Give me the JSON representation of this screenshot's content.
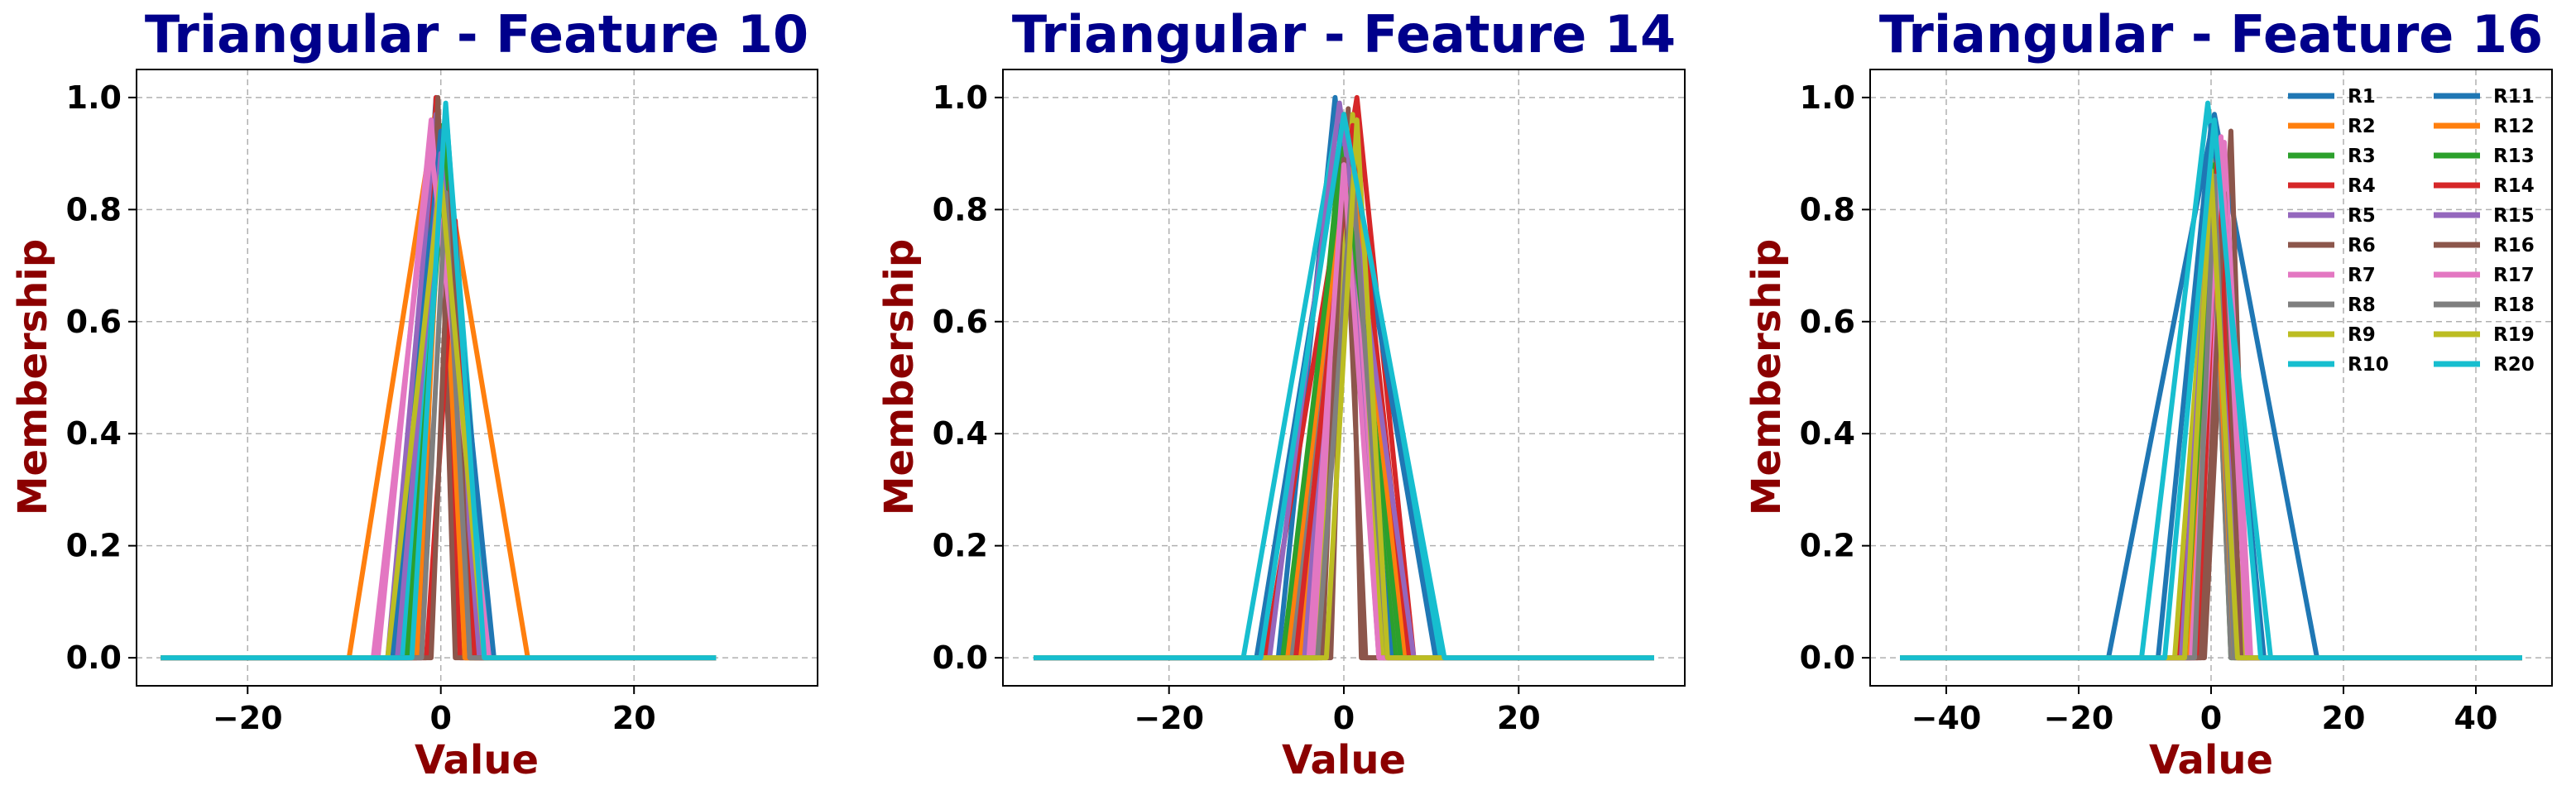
{
  "chart_data": [
    {
      "type": "line",
      "title": "Triangular - Feature 10",
      "xlabel": "Value",
      "ylabel": "Membership",
      "xlim": [
        -31.5,
        39
      ],
      "ylim": [
        -0.05,
        1.05
      ],
      "xticks": [
        -20,
        0,
        20
      ],
      "xtick_labels": [
        "−20",
        "0",
        "20"
      ],
      "yticks": [
        0.0,
        0.2,
        0.4,
        0.6,
        0.8,
        1.0
      ],
      "ytick_labels": [
        "0.0",
        "0.2",
        "0.4",
        "0.6",
        "0.8",
        "1.0"
      ],
      "grid": true,
      "legend": null,
      "x_range": [
        -29,
        28.5
      ],
      "series": [
        {
          "name": "R1",
          "color": "#1f77b4",
          "a": -4.5,
          "b": -0.5,
          "c": 3.5,
          "peak": 1.0
        },
        {
          "name": "R2",
          "color": "#ff7f0e",
          "a": -9.5,
          "b": -0.5,
          "c": 9.0,
          "peak": 0.98
        },
        {
          "name": "R3",
          "color": "#2ca02c",
          "a": -3.0,
          "b": 0.0,
          "c": 3.0,
          "peak": 0.95
        },
        {
          "name": "R4",
          "color": "#d62728",
          "a": -2.5,
          "b": -0.5,
          "c": 2.0,
          "peak": 1.0
        },
        {
          "name": "R5",
          "color": "#9467bd",
          "a": -5.5,
          "b": -0.5,
          "c": 4.5,
          "peak": 0.97
        },
        {
          "name": "R6",
          "color": "#8c564b",
          "a": -2.0,
          "b": -0.3,
          "c": 1.5,
          "peak": 1.0
        },
        {
          "name": "R7",
          "color": "#e377c2",
          "a": -6.5,
          "b": -1.0,
          "c": 3.5,
          "peak": 0.96
        },
        {
          "name": "R8",
          "color": "#7f7f7f",
          "a": -3.5,
          "b": 0.0,
          "c": 3.0,
          "peak": 0.9
        },
        {
          "name": "R9",
          "color": "#bcbd22",
          "a": -3.0,
          "b": 0.0,
          "c": 2.5,
          "peak": 0.93
        },
        {
          "name": "R10",
          "color": "#17becf",
          "a": -4.0,
          "b": 0.5,
          "c": 5.0,
          "peak": 0.98
        },
        {
          "name": "R11",
          "color": "#1f77b4",
          "a": -5.0,
          "b": 0.0,
          "c": 5.5,
          "peak": 0.94
        },
        {
          "name": "R12",
          "color": "#ff7f0e",
          "a": -2.5,
          "b": 0.0,
          "c": 2.5,
          "peak": 0.88
        },
        {
          "name": "R13",
          "color": "#2ca02c",
          "a": -3.5,
          "b": 0.5,
          "c": 4.0,
          "peak": 0.92
        },
        {
          "name": "R14",
          "color": "#d62728",
          "a": -1.5,
          "b": 1.5,
          "c": 3.5,
          "peak": 0.78
        },
        {
          "name": "R15",
          "color": "#9467bd",
          "a": -4.5,
          "b": 0.0,
          "c": 4.0,
          "peak": 0.9
        },
        {
          "name": "R16",
          "color": "#8c564b",
          "a": -1.0,
          "b": 1.0,
          "c": 3.0,
          "peak": 0.85
        },
        {
          "name": "R17",
          "color": "#e377c2",
          "a": -7.0,
          "b": -1.0,
          "c": 5.0,
          "peak": 0.91
        },
        {
          "name": "R18",
          "color": "#7f7f7f",
          "a": -2.0,
          "b": 0.5,
          "c": 3.0,
          "peak": 0.83
        },
        {
          "name": "R19",
          "color": "#bcbd22",
          "a": -5.5,
          "b": 0.0,
          "c": 4.5,
          "peak": 0.86
        },
        {
          "name": "R20",
          "color": "#17becf",
          "a": -3.0,
          "b": 0.5,
          "c": 4.5,
          "peak": 0.99
        }
      ]
    },
    {
      "type": "line",
      "title": "Triangular - Feature 14",
      "xlabel": "Value",
      "ylabel": "Membership",
      "xlim": [
        -39,
        39
      ],
      "ylim": [
        -0.05,
        1.05
      ],
      "xticks": [
        -20,
        0,
        20
      ],
      "xtick_labels": [
        "−20",
        "0",
        "20"
      ],
      "yticks": [
        0.0,
        0.2,
        0.4,
        0.6,
        0.8,
        1.0
      ],
      "ytick_labels": [
        "0.0",
        "0.2",
        "0.4",
        "0.6",
        "0.8",
        "1.0"
      ],
      "grid": true,
      "legend": null,
      "x_range": [
        -35.5,
        35.5
      ],
      "series": [
        {
          "name": "R1",
          "color": "#1f77b4",
          "a": -7.5,
          "b": -1.0,
          "c": 5.5,
          "peak": 1.0
        },
        {
          "name": "R2",
          "color": "#ff7f0e",
          "a": -5.0,
          "b": 0.0,
          "c": 5.0,
          "peak": 0.95
        },
        {
          "name": "R3",
          "color": "#2ca02c",
          "a": -6.0,
          "b": 0.0,
          "c": 6.0,
          "peak": 0.97
        },
        {
          "name": "R4",
          "color": "#d62728",
          "a": -9.0,
          "b": 1.5,
          "c": 8.0,
          "peak": 1.0
        },
        {
          "name": "R5",
          "color": "#9467bd",
          "a": -4.5,
          "b": 0.0,
          "c": 4.0,
          "peak": 0.92
        },
        {
          "name": "R6",
          "color": "#8c564b",
          "a": -1.5,
          "b": 0.5,
          "c": 2.0,
          "peak": 0.98
        },
        {
          "name": "R7",
          "color": "#e377c2",
          "a": -3.5,
          "b": 0.5,
          "c": 4.5,
          "peak": 0.94
        },
        {
          "name": "R8",
          "color": "#7f7f7f",
          "a": -6.0,
          "b": 0.0,
          "c": 6.5,
          "peak": 0.9
        },
        {
          "name": "R9",
          "color": "#bcbd22",
          "a": -3.0,
          "b": 1.0,
          "c": 4.5,
          "peak": 0.97
        },
        {
          "name": "R10",
          "color": "#17becf",
          "a": -11.5,
          "b": -0.5,
          "c": 11.0,
          "peak": 0.98
        },
        {
          "name": "R11",
          "color": "#1f77b4",
          "a": -10.0,
          "b": 0.0,
          "c": 10.5,
          "peak": 0.96
        },
        {
          "name": "R12",
          "color": "#ff7f0e",
          "a": -6.5,
          "b": 0.5,
          "c": 7.0,
          "peak": 0.93
        },
        {
          "name": "R13",
          "color": "#2ca02c",
          "a": -7.0,
          "b": 0.0,
          "c": 6.5,
          "peak": 0.91
        },
        {
          "name": "R14",
          "color": "#d62728",
          "a": -5.5,
          "b": 1.0,
          "c": 7.5,
          "peak": 0.95
        },
        {
          "name": "R15",
          "color": "#9467bd",
          "a": -8.5,
          "b": -0.5,
          "c": 8.0,
          "peak": 0.99
        },
        {
          "name": "R16",
          "color": "#8c564b",
          "a": -2.5,
          "b": 0.0,
          "c": 2.5,
          "peak": 0.89
        },
        {
          "name": "R17",
          "color": "#e377c2",
          "a": -4.0,
          "b": 0.0,
          "c": 4.0,
          "peak": 0.88
        },
        {
          "name": "R18",
          "color": "#7f7f7f",
          "a": -3.0,
          "b": 1.0,
          "c": 5.0,
          "peak": 0.86
        },
        {
          "name": "R19",
          "color": "#bcbd22",
          "a": -2.0,
          "b": 1.5,
          "c": 5.0,
          "peak": 0.96
        },
        {
          "name": "R20",
          "color": "#17becf",
          "a": -9.5,
          "b": 0.0,
          "c": 11.5,
          "peak": 0.97
        }
      ]
    },
    {
      "type": "line",
      "title": "Triangular - Feature 16",
      "xlabel": "Value",
      "ylabel": "Membership",
      "xlim": [
        -51.5,
        51.5
      ],
      "ylim": [
        -0.05,
        1.05
      ],
      "xticks": [
        -40,
        -20,
        0,
        20,
        40
      ],
      "xtick_labels": [
        "−40",
        "−20",
        "0",
        "20",
        "40"
      ],
      "yticks": [
        0.0,
        0.2,
        0.4,
        0.6,
        0.8,
        1.0
      ],
      "ytick_labels": [
        "0.0",
        "0.2",
        "0.4",
        "0.6",
        "0.8",
        "1.0"
      ],
      "grid": true,
      "legend": "top-right",
      "x_range": [
        -47,
        47
      ],
      "series": [
        {
          "name": "R1",
          "color": "#1f77b4",
          "a": -15.5,
          "b": 0.5,
          "c": 16.0,
          "peak": 0.97
        },
        {
          "name": "R2",
          "color": "#ff7f0e",
          "a": -4.0,
          "b": 0.0,
          "c": 4.0,
          "peak": 0.9
        },
        {
          "name": "R3",
          "color": "#2ca02c",
          "a": -3.0,
          "b": 0.0,
          "c": 3.0,
          "peak": 0.88
        },
        {
          "name": "R4",
          "color": "#d62728",
          "a": -5.0,
          "b": 0.0,
          "c": 5.0,
          "peak": 0.85
        },
        {
          "name": "R5",
          "color": "#9467bd",
          "a": -3.5,
          "b": 0.5,
          "c": 4.0,
          "peak": 0.9
        },
        {
          "name": "R6",
          "color": "#8c564b",
          "a": -1.0,
          "b": 3.0,
          "c": 5.5,
          "peak": 0.94
        },
        {
          "name": "R7",
          "color": "#e377c2",
          "a": -2.5,
          "b": 2.0,
          "c": 6.0,
          "peak": 0.92
        },
        {
          "name": "R8",
          "color": "#7f7f7f",
          "a": -3.0,
          "b": 0.0,
          "c": 3.0,
          "peak": 0.87
        },
        {
          "name": "R9",
          "color": "#bcbd22",
          "a": -5.5,
          "b": 0.0,
          "c": 5.0,
          "peak": 0.86
        },
        {
          "name": "R10",
          "color": "#17becf",
          "a": -10.5,
          "b": -0.5,
          "c": 9.0,
          "peak": 0.99
        },
        {
          "name": "R11",
          "color": "#1f77b4",
          "a": -8.0,
          "b": 0.0,
          "c": 8.0,
          "peak": 0.95
        },
        {
          "name": "R12",
          "color": "#ff7f0e",
          "a": -3.5,
          "b": 0.0,
          "c": 3.5,
          "peak": 0.89
        },
        {
          "name": "R13",
          "color": "#2ca02c",
          "a": -4.0,
          "b": 0.5,
          "c": 4.5,
          "peak": 0.88
        },
        {
          "name": "R14",
          "color": "#d62728",
          "a": -2.0,
          "b": 1.0,
          "c": 4.0,
          "peak": 0.9
        },
        {
          "name": "R15",
          "color": "#9467bd",
          "a": -4.5,
          "b": 0.0,
          "c": 4.5,
          "peak": 0.85
        },
        {
          "name": "R16",
          "color": "#8c564b",
          "a": -1.5,
          "b": 2.0,
          "c": 4.5,
          "peak": 0.83
        },
        {
          "name": "R17",
          "color": "#e377c2",
          "a": -3.0,
          "b": 1.5,
          "c": 5.5,
          "peak": 0.93
        },
        {
          "name": "R18",
          "color": "#7f7f7f",
          "a": -2.5,
          "b": 0.5,
          "c": 3.5,
          "peak": 0.86
        },
        {
          "name": "R19",
          "color": "#bcbd22",
          "a": -4.0,
          "b": 0.0,
          "c": 4.0,
          "peak": 0.87
        },
        {
          "name": "R20",
          "color": "#17becf",
          "a": -7.0,
          "b": 0.5,
          "c": 7.5,
          "peak": 0.96
        }
      ]
    }
  ],
  "colors": {
    "title": "#00008b",
    "axis_label": "#8b0000",
    "tick": "#000000",
    "grid": "#b0b0b0"
  }
}
